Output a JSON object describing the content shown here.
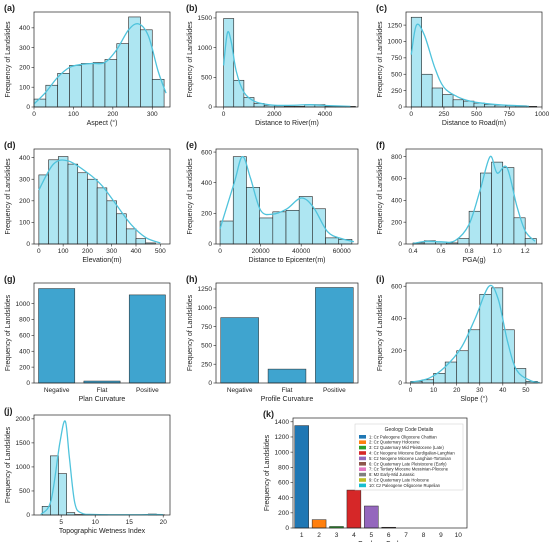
{
  "chart_data": [
    {
      "id": "a",
      "type": "bar",
      "panel_label": "(a)",
      "xlabel": "Aspect (°)",
      "ylabel": "Frequency of Landslides",
      "bin_edges": [
        0,
        30,
        60,
        90,
        120,
        150,
        180,
        210,
        240,
        270,
        300,
        330
      ],
      "values": [
        40,
        110,
        170,
        210,
        220,
        225,
        240,
        320,
        455,
        390,
        140
      ],
      "kde": [
        [
          0,
          15
        ],
        [
          30,
          75
        ],
        [
          60,
          150
        ],
        [
          90,
          200
        ],
        [
          120,
          215
        ],
        [
          150,
          220
        ],
        [
          180,
          225
        ],
        [
          210,
          290
        ],
        [
          240,
          390
        ],
        [
          265,
          420
        ],
        [
          290,
          360
        ],
        [
          315,
          180
        ],
        [
          335,
          70
        ]
      ],
      "xlim": [
        0,
        345
      ],
      "ylim": [
        0,
        480
      ],
      "xticks": [
        0,
        100,
        200,
        300
      ],
      "xtick_labels": [
        "0",
        "100",
        "200",
        "300"
      ],
      "yticks": [
        0,
        100,
        200,
        300,
        400
      ],
      "ytick_labels": [
        "0",
        "100",
        "200",
        "300",
        "400"
      ]
    },
    {
      "id": "b",
      "type": "bar",
      "panel_label": "(b)",
      "xlabel": "Distance to River(m)",
      "ylabel": "Frequency of Landslides",
      "bin_edges": [
        0,
        400,
        800,
        1200,
        1600,
        2000,
        2400,
        2800,
        3200,
        3600,
        4000,
        4400,
        4800,
        5200
      ],
      "values": [
        1490,
        450,
        160,
        60,
        30,
        20,
        10,
        10,
        40,
        40,
        10,
        5,
        10
      ],
      "kde": [
        [
          0,
          700
        ],
        [
          150,
          1250
        ],
        [
          300,
          1100
        ],
        [
          500,
          600
        ],
        [
          800,
          250
        ],
        [
          1200,
          100
        ],
        [
          1600,
          50
        ],
        [
          2000,
          30
        ],
        [
          2800,
          30
        ],
        [
          3400,
          40
        ],
        [
          4000,
          25
        ],
        [
          5000,
          10
        ]
      ],
      "xlim": [
        -300,
        5300
      ],
      "ylim": [
        0,
        1600
      ],
      "xticks": [
        0,
        2000,
        4000
      ],
      "xtick_labels": [
        "0",
        "2000",
        "4000"
      ],
      "yticks": [
        0,
        500,
        1000,
        1500
      ],
      "ytick_labels": [
        "0",
        "500",
        "1000",
        "1500"
      ]
    },
    {
      "id": "c",
      "type": "bar",
      "panel_label": "(c)",
      "xlabel": "Distance to Road(m)",
      "ylabel": "Frequency of Landslides",
      "bin_edges": [
        0,
        80,
        160,
        240,
        320,
        400,
        480,
        560,
        640,
        720,
        800,
        880,
        960
      ],
      "values": [
        1370,
        500,
        290,
        190,
        110,
        90,
        60,
        40,
        30,
        20,
        20,
        10
      ],
      "kde": [
        [
          0,
          800
        ],
        [
          40,
          1250
        ],
        [
          100,
          1100
        ],
        [
          180,
          600
        ],
        [
          250,
          300
        ],
        [
          350,
          160
        ],
        [
          450,
          90
        ],
        [
          560,
          55
        ],
        [
          700,
          30
        ],
        [
          900,
          12
        ]
      ],
      "xlim": [
        -40,
        1000
      ],
      "ylim": [
        0,
        1450
      ],
      "xticks": [
        0,
        250,
        500,
        750,
        1000
      ],
      "xtick_labels": [
        "0",
        "250",
        "500",
        "750",
        "1000"
      ],
      "yticks": [
        0,
        250,
        500,
        750,
        1000,
        1250
      ],
      "ytick_labels": [
        "0",
        "250",
        "500",
        "750",
        "1000",
        "1250"
      ]
    },
    {
      "id": "d",
      "type": "bar",
      "panel_label": "(d)",
      "xlabel": "Elevation(m)",
      "ylabel": "Frequency of Landslides",
      "bin_edges": [
        0,
        40,
        80,
        120,
        160,
        200,
        240,
        280,
        320,
        360,
        400,
        440,
        480
      ],
      "values": [
        320,
        390,
        405,
        370,
        330,
        300,
        260,
        200,
        140,
        70,
        25,
        5
      ],
      "kde": [
        [
          0,
          250
        ],
        [
          60,
          370
        ],
        [
          120,
          385
        ],
        [
          200,
          330
        ],
        [
          260,
          270
        ],
        [
          320,
          180
        ],
        [
          380,
          90
        ],
        [
          440,
          30
        ],
        [
          500,
          5
        ]
      ],
      "xlim": [
        -20,
        540
      ],
      "ylim": [
        0,
        440
      ],
      "xticks": [
        0,
        100,
        200,
        300,
        400,
        500
      ],
      "xtick_labels": [
        "0",
        "100",
        "200",
        "300",
        "400",
        "500"
      ],
      "yticks": [
        0,
        100,
        200,
        300,
        400
      ],
      "ytick_labels": [
        "0",
        "100",
        "200",
        "300",
        "400"
      ]
    },
    {
      "id": "e",
      "type": "bar",
      "panel_label": "(e)",
      "xlabel": "Distance to Epicenter(m)",
      "ylabel": "Frequency of Landslides",
      "bin_edges": [
        0,
        6500,
        13000,
        19500,
        26000,
        32500,
        39000,
        45500,
        52000,
        58500,
        65000
      ],
      "values": [
        150,
        570,
        370,
        170,
        210,
        220,
        310,
        230,
        40,
        30
      ],
      "kde": [
        [
          0,
          100
        ],
        [
          7000,
          400
        ],
        [
          11000,
          570
        ],
        [
          15000,
          430
        ],
        [
          20000,
          220
        ],
        [
          26000,
          195
        ],
        [
          33000,
          230
        ],
        [
          40000,
          300
        ],
        [
          46000,
          240
        ],
        [
          53000,
          80
        ],
        [
          60000,
          35
        ],
        [
          66000,
          15
        ]
      ],
      "xlim": [
        -2000,
        68000
      ],
      "ylim": [
        0,
        620
      ],
      "xticks": [
        0,
        20000,
        40000,
        60000
      ],
      "xtick_labels": [
        "0",
        "20000",
        "40000",
        "60000"
      ],
      "yticks": [
        0,
        200,
        400,
        600
      ],
      "ytick_labels": [
        "0",
        "200",
        "400",
        "600"
      ]
    },
    {
      "id": "f",
      "type": "bar",
      "panel_label": "(f)",
      "xlabel": "PGA(g)",
      "ylabel": "Frequency of Landslides",
      "bin_edges": [
        0.4,
        0.48,
        0.56,
        0.64,
        0.72,
        0.8,
        0.88,
        0.96,
        1.04,
        1.12,
        1.2,
        1.28
      ],
      "values": [
        10,
        30,
        20,
        10,
        50,
        300,
        650,
        750,
        700,
        240,
        50
      ],
      "kde": [
        [
          0.4,
          5
        ],
        [
          0.5,
          25
        ],
        [
          0.6,
          20
        ],
        [
          0.7,
          30
        ],
        [
          0.8,
          180
        ],
        [
          0.88,
          500
        ],
        [
          0.95,
          800
        ],
        [
          1.0,
          650
        ],
        [
          1.07,
          700
        ],
        [
          1.14,
          350
        ],
        [
          1.2,
          120
        ],
        [
          1.27,
          25
        ]
      ],
      "xlim": [
        0.35,
        1.32
      ],
      "ylim": [
        0,
        870
      ],
      "xticks": [
        0.4,
        0.6,
        0.8,
        1.0,
        1.2
      ],
      "xtick_labels": [
        "0.4",
        "0.6",
        "0.8",
        "1.0",
        "1.2"
      ],
      "yticks": [
        0,
        200,
        400,
        600,
        800
      ],
      "ytick_labels": [
        "0",
        "200",
        "400",
        "600",
        "800"
      ]
    },
    {
      "id": "g",
      "type": "bar",
      "panel_label": "(g)",
      "xlabel": "Plan Curvature",
      "ylabel": "Frequency of Landslides",
      "categories": [
        "Negative",
        "Flat",
        "Positive"
      ],
      "values": [
        1190,
        25,
        1110
      ],
      "ylim": [
        0,
        1260
      ],
      "yticks": [
        0,
        200,
        400,
        600,
        800,
        1000
      ],
      "ytick_labels": [
        "0",
        "200",
        "400",
        "600",
        "800",
        "1000"
      ]
    },
    {
      "id": "h",
      "type": "bar",
      "panel_label": "(h)",
      "xlabel": "Profile Curvature",
      "ylabel": "Frequency of Landslides",
      "categories": [
        "Negative",
        "Flat",
        "Positive"
      ],
      "values": [
        870,
        185,
        1270
      ],
      "ylim": [
        0,
        1330
      ],
      "yticks": [
        0,
        250,
        500,
        750,
        1000,
        1250
      ],
      "ytick_labels": [
        "0",
        "250",
        "500",
        "750",
        "1000",
        "1250"
      ]
    },
    {
      "id": "i",
      "type": "bar",
      "panel_label": "(i)",
      "xlabel": "Slope (°)",
      "ylabel": "Frequency of Landslides",
      "bin_edges": [
        0,
        5,
        10,
        15,
        20,
        25,
        30,
        35,
        40,
        45,
        50,
        55
      ],
      "values": [
        10,
        20,
        60,
        130,
        200,
        330,
        550,
        590,
        330,
        90,
        10
      ],
      "kde": [
        [
          0,
          5
        ],
        [
          8,
          30
        ],
        [
          15,
          100
        ],
        [
          22,
          220
        ],
        [
          28,
          400
        ],
        [
          34,
          600
        ],
        [
          38,
          520
        ],
        [
          42,
          260
        ],
        [
          46,
          80
        ],
        [
          52,
          15
        ],
        [
          56,
          3
        ]
      ],
      "xlim": [
        -2,
        57
      ],
      "ylim": [
        0,
        620
      ],
      "xticks": [
        0,
        10,
        20,
        30,
        40,
        50
      ],
      "xtick_labels": [
        "0",
        "10",
        "20",
        "30",
        "40",
        "50"
      ],
      "yticks": [
        0,
        200,
        400,
        600
      ],
      "ytick_labels": [
        "0",
        "200",
        "400",
        "600"
      ]
    },
    {
      "id": "j",
      "type": "bar",
      "panel_label": "(j)",
      "xlabel": "Topographic Wetness Index",
      "ylabel": "Frequency of Landslides",
      "bin_edges": [
        2.2,
        3.4,
        4.6,
        5.8,
        7.0,
        8.2,
        9.4,
        10.6,
        11.8,
        13.0,
        14.2,
        15.4,
        16.6,
        17.8,
        19.0,
        20.2
      ],
      "values": [
        180,
        1230,
        860,
        50,
        10,
        5,
        5,
        5,
        0,
        0,
        0,
        0,
        0,
        20,
        5
      ],
      "kde": [
        [
          2,
          10
        ],
        [
          3.5,
          300
        ],
        [
          4.8,
          1500
        ],
        [
          5.6,
          1950
        ],
        [
          6.2,
          1200
        ],
        [
          7,
          250
        ],
        [
          8,
          40
        ],
        [
          10,
          10
        ],
        [
          15,
          5
        ],
        [
          19,
          10
        ],
        [
          20,
          5
        ]
      ],
      "xlim": [
        1,
        21
      ],
      "ylim": [
        0,
        2080
      ],
      "xticks": [
        5,
        10,
        15,
        20
      ],
      "xtick_labels": [
        "5",
        "10",
        "15",
        "20"
      ],
      "yticks": [
        0,
        500,
        1000,
        1500,
        2000
      ],
      "ytick_labels": [
        "0",
        "500",
        "1000",
        "1500",
        "2000"
      ]
    },
    {
      "id": "k",
      "type": "bar",
      "panel_label": "(k)",
      "xlabel": "Geology Code",
      "ylabel": "Frequency of Landslides",
      "categories": [
        "1",
        "2",
        "3",
        "4",
        "5",
        "6",
        "7",
        "8",
        "9",
        "10"
      ],
      "values": [
        1350,
        110,
        20,
        500,
        290,
        10,
        0,
        0,
        0,
        0
      ],
      "ylim": [
        0,
        1450
      ],
      "yticks": [
        0,
        200,
        400,
        600,
        800,
        1000,
        1200,
        1400
      ],
      "ytick_labels": [
        "0",
        "200",
        "400",
        "600",
        "800",
        "1000",
        "1200",
        "1400"
      ],
      "legend_title": "Geology Code Details",
      "legend": [
        "1: Cz Paleogene Oligocene Chattian",
        "2: Cz Quaternary Holocene",
        "3: Cz Quaternary Mid Pleistocene (Late)",
        "4: Cz Neogene Miocene Burdigalian-Langhian",
        "5: Cz Neogene Miocene Langhian-Tortonian",
        "6: Cz Quaternary Late Pleistocene (Early)",
        "7: Cz Tertiary Miocene Messinian-Pliocene",
        "8: Mz Early-Mid Jurassic",
        "9: Cz Quaternary Late Holocene",
        "10: Cz Paleogene Oligocene Rupelian"
      ],
      "colors": [
        "#1f77b4",
        "#ff7f0e",
        "#2ca02c",
        "#d62728",
        "#9467bd",
        "#8c564b",
        "#e377c2",
        "#7f7f7f",
        "#bcbd22",
        "#17becf"
      ]
    }
  ],
  "colors": {
    "hist_fill": "#aee6f2",
    "hist_edge": "#222222",
    "kde": "#4fc3dc",
    "bar": "#3fa4cf"
  }
}
